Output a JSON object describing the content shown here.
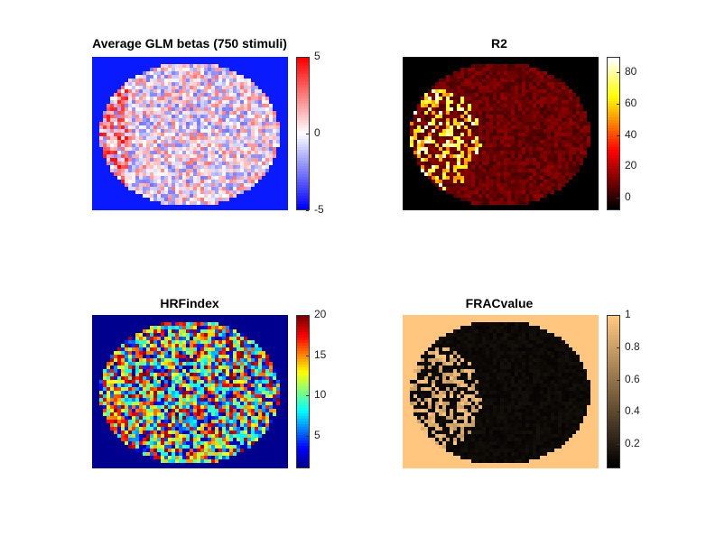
{
  "chart_data": [
    {
      "type": "heatmap",
      "title": "Average GLM betas (750 stimuli)",
      "colormap": "blue-white-red",
      "clim": [
        -5,
        5
      ],
      "background_color": "#0a1aff",
      "colorbar_ticks": [
        "5",
        "0",
        "-5"
      ],
      "colorbar_tick_values": [
        5,
        0,
        -5
      ],
      "colors": {
        "low": "#0000ff",
        "mid": "#ffffff",
        "high": "#ff0000"
      }
    },
    {
      "type": "heatmap",
      "title": "R2",
      "colormap": "hot",
      "clim": [
        -8,
        90
      ],
      "background_color": "#000000",
      "colorbar_ticks": [
        "80",
        "60",
        "40",
        "20",
        "0"
      ],
      "colorbar_tick_values": [
        80,
        60,
        40,
        20,
        0
      ],
      "colors": {
        "low": "#000000",
        "mid": "#ff3300",
        "high": "#ffffff"
      }
    },
    {
      "type": "heatmap",
      "title": "HRFindex",
      "colormap": "jet",
      "clim": [
        1,
        20
      ],
      "background_color": "#00008f",
      "colorbar_ticks": [
        "20",
        "15",
        "10",
        "5"
      ],
      "colorbar_tick_values": [
        20,
        15,
        10,
        5
      ],
      "colors": {
        "low": "#00008f",
        "mid": "#7fff7f",
        "high": "#800000"
      }
    },
    {
      "type": "heatmap",
      "title": "FRACvalue",
      "colormap": "copper",
      "clim": [
        0.05,
        1
      ],
      "background_color": "#ffc67f",
      "colorbar_ticks": [
        "1",
        "0.8",
        "0.6",
        "0.4",
        "0.2"
      ],
      "colorbar_tick_values": [
        1,
        0.8,
        0.6,
        0.4,
        0.2
      ],
      "colors": {
        "low": "#000000",
        "mid": "#9f6440",
        "high": "#ffc77f"
      }
    }
  ]
}
